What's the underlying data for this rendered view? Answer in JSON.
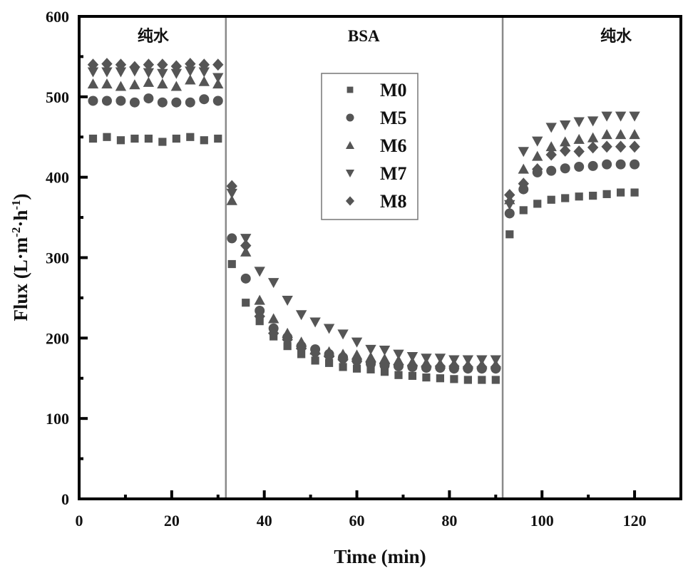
{
  "chart_data": {
    "type": "scatter",
    "title": "",
    "xlabel": "Time (min)",
    "ylabel": "Flux (L·m⁻²·h⁻¹)",
    "ylabel_parts": {
      "base": "Flux (L·m",
      "exp1": "-2",
      "mid": "·h",
      "exp2": "-1",
      "end": ")"
    },
    "xlim": [
      0,
      130
    ],
    "ylim": [
      0,
      600
    ],
    "xticks": [
      0,
      20,
      40,
      60,
      80,
      100,
      120
    ],
    "yticks": [
      0,
      100,
      200,
      300,
      400,
      500,
      600
    ],
    "x_minor_ticks": [
      10,
      30,
      50,
      70,
      90,
      110
    ],
    "y_minor_ticks": [
      50,
      150,
      250,
      350,
      450,
      550
    ],
    "grid": false,
    "legend_position": "top-center",
    "marker_color": "#555555",
    "phase_dividers": [
      31.7,
      91.5
    ],
    "phases": [
      {
        "label": "纯水",
        "x_center": 16
      },
      {
        "label": "BSA",
        "x_center": 61.5
      },
      {
        "label": "纯水",
        "x_center": 116
      }
    ],
    "x": [
      3,
      6,
      9,
      12,
      15,
      18,
      21,
      24,
      27,
      30,
      33,
      36,
      39,
      42,
      45,
      48,
      51,
      54,
      57,
      60,
      63,
      66,
      69,
      72,
      75,
      78,
      81,
      84,
      87,
      90,
      93,
      96,
      99,
      102,
      105,
      108,
      111,
      114,
      117,
      120
    ],
    "series": [
      {
        "name": "M0",
        "marker": "square",
        "values": [
          448,
          450,
          446,
          448,
          448,
          444,
          448,
          450,
          446,
          448,
          292,
          244,
          221,
          202,
          190,
          180,
          172,
          169,
          164,
          162,
          161,
          158,
          154,
          153,
          151,
          150,
          149,
          148,
          148,
          148,
          329,
          359,
          367,
          372,
          374,
          376,
          377,
          379,
          381,
          381
        ]
      },
      {
        "name": "M5",
        "marker": "circle",
        "values": [
          495,
          495,
          495,
          493,
          498,
          493,
          493,
          493,
          497,
          495,
          324,
          274,
          234,
          212,
          201,
          190,
          186,
          180,
          176,
          172,
          168,
          166,
          165,
          164,
          163,
          163,
          162,
          162,
          162,
          162,
          355,
          385,
          406,
          408,
          411,
          413,
          414,
          416,
          416,
          416
        ]
      },
      {
        "name": "M6",
        "marker": "triangle-up",
        "values": [
          516,
          516,
          513,
          515,
          518,
          516,
          513,
          521,
          519,
          516,
          371,
          307,
          247,
          224,
          206,
          195,
          185,
          183,
          180,
          179,
          176,
          174,
          172,
          170,
          169,
          168,
          168,
          167,
          167,
          167,
          372,
          410,
          426,
          438,
          444,
          447,
          449,
          453,
          453,
          453
        ]
      },
      {
        "name": "M7",
        "marker": "triangle-down",
        "values": [
          531,
          531,
          531,
          532,
          530,
          529,
          529,
          532,
          531,
          524,
          380,
          324,
          283,
          269,
          247,
          229,
          220,
          212,
          205,
          195,
          186,
          185,
          180,
          177,
          175,
          175,
          173,
          173,
          173,
          173,
          366,
          432,
          445,
          462,
          465,
          469,
          470,
          476,
          476,
          476
        ]
      },
      {
        "name": "M8",
        "marker": "diamond",
        "values": [
          540,
          541,
          540,
          537,
          540,
          540,
          538,
          541,
          540,
          540,
          389,
          315,
          227,
          206,
          198,
          187,
          181,
          177,
          173,
          171,
          170,
          168,
          167,
          166,
          165,
          165,
          165,
          164,
          164,
          164,
          378,
          392,
          410,
          428,
          433,
          432,
          437,
          438,
          438,
          438
        ]
      }
    ]
  }
}
